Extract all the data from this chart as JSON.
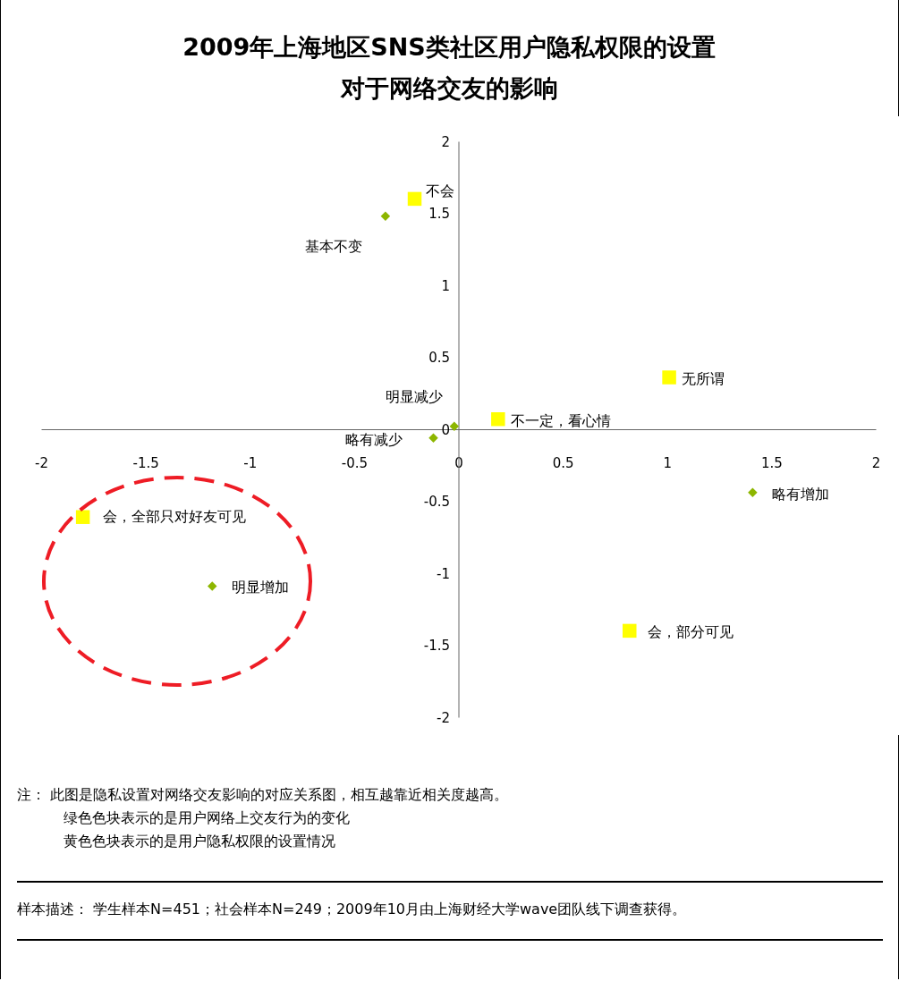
{
  "chart_data": {
    "type": "scatter",
    "title": "2009年上海地区SNS类社区用户隐私权限的设置对于网络交友的影响",
    "xlim": [
      -2,
      2
    ],
    "ylim": [
      -2,
      2
    ],
    "xticks": [
      -2,
      -1.5,
      -1,
      -0.5,
      0,
      0.5,
      1,
      1.5,
      2
    ],
    "yticks": [
      -2,
      -1.5,
      -1,
      -0.5,
      0,
      0.5,
      1,
      1.5,
      2
    ],
    "grid": false,
    "series": [
      {
        "color": "#ffff00",
        "marker": "square",
        "x": [
          -0.21,
          1.01,
          0.19,
          -1.8,
          0.82
        ],
        "values": [
          1.6,
          0.36,
          0.07,
          -0.61,
          -1.4
        ]
      },
      {
        "color": "#8db600",
        "marker": "diamond",
        "x": [
          -0.35,
          -0.02,
          -0.12,
          1.41,
          -1.18
        ],
        "values": [
          1.48,
          0.02,
          -0.06,
          -0.44,
          -1.09
        ]
      }
    ],
    "annotations": [
      {
        "text": "不会",
        "x": -0.21,
        "y": 1.6
      },
      {
        "text": "无所谓",
        "x": 1.01,
        "y": 0.36
      },
      {
        "text": "不一定，看心情",
        "x": 0.19,
        "y": 0.07
      },
      {
        "text": "会，全部只对好友可见",
        "x": -1.8,
        "y": -0.61
      },
      {
        "text": "会，部分可见",
        "x": 0.82,
        "y": -1.4
      },
      {
        "text": "基本不变",
        "x": -0.35,
        "y": 1.48
      },
      {
        "text": "明显减少",
        "x": -0.02,
        "y": 0.02
      },
      {
        "text": "略有减少",
        "x": -0.12,
        "y": -0.06
      },
      {
        "text": "略有增加",
        "x": 1.41,
        "y": -0.44
      },
      {
        "text": "明显增加",
        "x": -1.18,
        "y": -1.09
      },
      "注： 此图是隐私设置对网络交友影响的对应关系图，相互越靠近相关度越高。",
      "绿色色块表示的是用户网络上交友行为的变化",
      "黄色色块表示的是用户隐私权限的设置情况",
      "样本描述： 学生样本N=451；社会样本N=249；2009年10月由上海财经大学wave团队线下调查获得。"
    ]
  }
}
